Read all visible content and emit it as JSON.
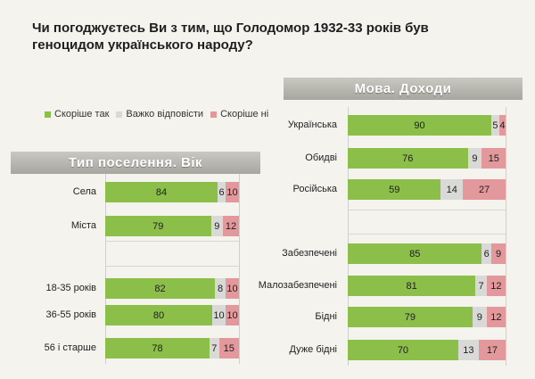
{
  "title": "Чи погоджуєтесь Ви з тим, що Голодомор 1932-33 років був геноцидом українського народу?",
  "colors": {
    "yes": "#8cbf4a",
    "hard": "#d9d9d7",
    "no": "#e3999c"
  },
  "legend": [
    {
      "key": "yes",
      "label": "Скоріше так"
    },
    {
      "key": "hard",
      "label": "Важко відповісти"
    },
    {
      "key": "no",
      "label": "Скоріше ні"
    }
  ],
  "chart_data": [
    {
      "type": "bar",
      "stacked": true,
      "orientation": "horizontal",
      "title": "Тип поселення. Вік",
      "categories": [
        "Села",
        "Міста",
        "18-35 років",
        "36-55 років",
        "56 і старше"
      ],
      "series": [
        {
          "name": "Скоріше так",
          "values": [
            84,
            79,
            82,
            80,
            78
          ]
        },
        {
          "name": "Важко відповісти",
          "values": [
            6,
            9,
            8,
            10,
            7
          ]
        },
        {
          "name": "Скоріше ні",
          "values": [
            10,
            12,
            10,
            10,
            15
          ]
        }
      ]
    },
    {
      "type": "bar",
      "stacked": true,
      "orientation": "horizontal",
      "title": "Мова. Доходи",
      "categories": [
        "Українська",
        "Обидві",
        "Російська",
        "Забезпечені",
        "Малозабезпечені",
        "Бідні",
        "Дуже бідні"
      ],
      "series": [
        {
          "name": "Скоріше так",
          "values": [
            90,
            76,
            59,
            85,
            81,
            79,
            70
          ]
        },
        {
          "name": "Важко відповісти",
          "values": [
            5,
            9,
            14,
            6,
            7,
            9,
            13
          ]
        },
        {
          "name": "Скоріше ні",
          "values": [
            4,
            15,
            27,
            9,
            12,
            12,
            17
          ]
        }
      ]
    }
  ]
}
